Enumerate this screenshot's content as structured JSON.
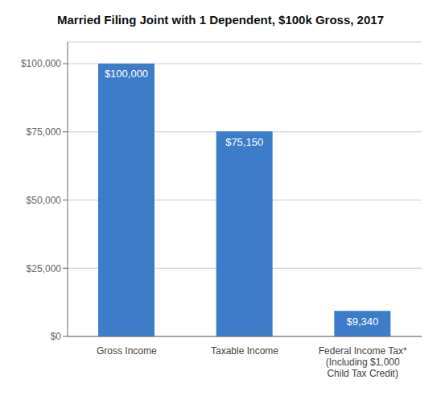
{
  "chart_data": {
    "type": "bar",
    "title": "Married Filing Joint with 1 Dependent, $100k Gross, 2017",
    "categories": [
      "Gross Income",
      "Taxable Income",
      "Federal Income Tax*\n(Including $1,000\nChild Tax Credit)"
    ],
    "values": [
      100000,
      75150,
      9340
    ],
    "value_labels": [
      "$100,000",
      "$75,150",
      "$9,340"
    ],
    "data_labels": true,
    "color": "#3d7cc9",
    "ylim": [
      0,
      108000
    ],
    "yticks": [
      {
        "value": 0,
        "label": "$0"
      },
      {
        "value": 25000,
        "label": "$25,000"
      },
      {
        "value": 50000,
        "label": "$50,000"
      },
      {
        "value": 75000,
        "label": "$75,000"
      },
      {
        "value": 100000,
        "label": "$100,000"
      }
    ],
    "grid": true
  }
}
